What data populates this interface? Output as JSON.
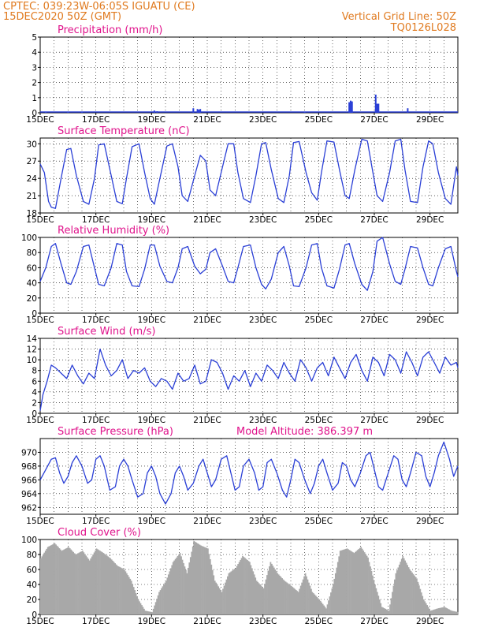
{
  "header": {
    "line1": "CPTEC:   039:23W-06:05S   IGUATU (CE)",
    "line2": "15DEC2020 50Z (GMT)",
    "grid_note": "Vertical Grid Line: 50Z",
    "code": "TQ0126L028"
  },
  "colors": {
    "header": "#e07a1f",
    "title": "#e0148c",
    "line": "#2a3fd6",
    "cloud": "#a8a8a8",
    "grid": "#000000"
  },
  "x_labels": [
    "15DEC",
    "17DEC",
    "19DEC",
    "21DEC",
    "23DEC",
    "25DEC",
    "27DEC",
    "29DEC"
  ],
  "chart_data": [
    {
      "type": "bar",
      "title": "Precipitation (mm/h)",
      "ylim": [
        0,
        5
      ],
      "yticks": [
        0,
        1,
        2,
        3,
        4,
        5
      ],
      "x_range": [
        0,
        15
      ],
      "color": "#2a3fd6",
      "x": [
        0.2,
        1.0,
        1.5,
        4.1,
        4.2,
        5.5,
        5.65,
        5.7,
        5.75,
        9.5,
        11.1,
        11.15,
        11.2,
        12.05,
        12.1,
        12.15,
        13.2,
        14.0
      ],
      "values": [
        0.05,
        0.05,
        0.05,
        0.15,
        0.1,
        0.3,
        0.25,
        0.2,
        0.25,
        0.05,
        0.7,
        0.8,
        0.75,
        1.2,
        0.6,
        0.6,
        0.3,
        0.05
      ]
    },
    {
      "type": "line",
      "title": "Surface Temperature (nC)",
      "ylim": [
        18,
        31
      ],
      "yticks": [
        18,
        21,
        24,
        27,
        30
      ],
      "x_range": [
        0,
        15
      ],
      "color": "#2a3fd6",
      "x": [
        0.0,
        0.15,
        0.3,
        0.4,
        0.55,
        0.75,
        0.95,
        1.1,
        1.3,
        1.55,
        1.75,
        1.95,
        2.1,
        2.3,
        2.55,
        2.75,
        2.95,
        3.1,
        3.3,
        3.55,
        3.75,
        3.95,
        4.1,
        4.3,
        4.55,
        4.75,
        4.95,
        5.1,
        5.3,
        5.55,
        5.75,
        5.95,
        6.1,
        6.3,
        6.55,
        6.75,
        6.95,
        7.1,
        7.3,
        7.55,
        7.75,
        7.95,
        8.1,
        8.3,
        8.55,
        8.75,
        8.95,
        9.1,
        9.3,
        9.55,
        9.75,
        9.95,
        10.1,
        10.3,
        10.55,
        10.75,
        10.95,
        11.1,
        11.3,
        11.55,
        11.75,
        11.95,
        12.1,
        12.3,
        12.55,
        12.75,
        12.95,
        13.1,
        13.3,
        13.55,
        13.75,
        13.95,
        14.1,
        14.3,
        14.55,
        14.75,
        14.95,
        15.0
      ],
      "values": [
        26.5,
        25.0,
        20.0,
        19.0,
        18.8,
        24.0,
        29.0,
        29.2,
        24.5,
        20.0,
        19.5,
        24.0,
        29.8,
        30.0,
        24.5,
        20.0,
        19.6,
        24.0,
        29.5,
        30.0,
        25.0,
        20.5,
        19.5,
        24.0,
        29.6,
        30.0,
        26.0,
        21.0,
        20.0,
        24.5,
        28.0,
        27.0,
        22.0,
        21.0,
        26.0,
        30.0,
        30.0,
        25.0,
        20.5,
        19.8,
        24.5,
        30.0,
        30.2,
        25.5,
        20.5,
        19.8,
        24.5,
        30.2,
        30.4,
        25.0,
        21.5,
        20.2,
        25.0,
        30.5,
        30.3,
        25.5,
        21.0,
        20.5,
        25.5,
        30.8,
        30.5,
        25.0,
        21.0,
        20.0,
        25.0,
        30.5,
        30.8,
        25.5,
        20.0,
        19.8,
        26.0,
        30.5,
        30.0,
        25.0,
        20.5,
        19.5,
        26.0,
        24.5
      ]
    },
    {
      "type": "line",
      "title": "Relative Humidity (%)",
      "ylim": [
        0,
        100
      ],
      "yticks": [
        0,
        20,
        40,
        60,
        80,
        100
      ],
      "x_range": [
        0,
        15
      ],
      "color": "#2a3fd6",
      "x": [
        0.0,
        0.2,
        0.4,
        0.55,
        0.75,
        0.95,
        1.1,
        1.3,
        1.55,
        1.75,
        1.95,
        2.1,
        2.3,
        2.55,
        2.75,
        2.95,
        3.1,
        3.3,
        3.55,
        3.75,
        3.95,
        4.1,
        4.3,
        4.55,
        4.75,
        4.95,
        5.1,
        5.3,
        5.55,
        5.75,
        5.95,
        6.1,
        6.3,
        6.55,
        6.75,
        6.95,
        7.1,
        7.3,
        7.55,
        7.75,
        7.95,
        8.1,
        8.3,
        8.55,
        8.75,
        8.95,
        9.1,
        9.3,
        9.55,
        9.75,
        9.95,
        10.1,
        10.3,
        10.55,
        10.75,
        10.95,
        11.1,
        11.3,
        11.55,
        11.75,
        11.95,
        12.1,
        12.3,
        12.55,
        12.75,
        12.95,
        13.1,
        13.3,
        13.55,
        13.75,
        13.95,
        14.1,
        14.3,
        14.55,
        14.75,
        14.95,
        15.0
      ],
      "values": [
        42,
        60,
        88,
        92,
        65,
        40,
        38,
        55,
        88,
        90,
        60,
        38,
        36,
        60,
        92,
        90,
        55,
        36,
        35,
        58,
        90,
        90,
        62,
        42,
        40,
        60,
        85,
        88,
        62,
        52,
        58,
        80,
        85,
        62,
        42,
        40,
        60,
        88,
        90,
        60,
        38,
        32,
        45,
        80,
        88,
        62,
        36,
        35,
        60,
        90,
        92,
        60,
        36,
        33,
        58,
        90,
        92,
        65,
        38,
        30,
        55,
        95,
        100,
        65,
        42,
        38,
        58,
        88,
        86,
        60,
        38,
        36,
        60,
        85,
        88,
        55,
        48
      ]
    },
    {
      "type": "line",
      "title": "Surface Wind (m/s)",
      "ylim": [
        0,
        14
      ],
      "yticks": [
        0,
        2,
        4,
        6,
        8,
        10,
        12,
        14
      ],
      "x_range": [
        0,
        15
      ],
      "color": "#2a3fd6",
      "x": [
        0.0,
        0.1,
        0.25,
        0.4,
        0.55,
        0.75,
        0.95,
        1.15,
        1.35,
        1.55,
        1.75,
        1.95,
        2.15,
        2.35,
        2.55,
        2.75,
        2.95,
        3.15,
        3.35,
        3.55,
        3.75,
        3.95,
        4.15,
        4.35,
        4.55,
        4.75,
        4.95,
        5.15,
        5.35,
        5.55,
        5.75,
        5.95,
        6.15,
        6.35,
        6.55,
        6.75,
        6.95,
        7.15,
        7.35,
        7.55,
        7.75,
        7.95,
        8.15,
        8.35,
        8.55,
        8.75,
        8.95,
        9.15,
        9.35,
        9.55,
        9.75,
        9.95,
        10.15,
        10.35,
        10.55,
        10.75,
        10.95,
        11.15,
        11.35,
        11.55,
        11.75,
        11.95,
        12.15,
        12.35,
        12.55,
        12.75,
        12.95,
        13.15,
        13.35,
        13.55,
        13.75,
        13.95,
        14.15,
        14.35,
        14.55,
        14.75,
        14.95,
        15.0
      ],
      "values": [
        0.5,
        3.5,
        6.0,
        9.0,
        8.5,
        7.5,
        6.5,
        9.0,
        7.0,
        5.5,
        7.5,
        6.5,
        12.0,
        9.0,
        7.0,
        8.0,
        10.0,
        6.5,
        8.0,
        7.5,
        8.5,
        6.0,
        5.0,
        6.5,
        6.0,
        4.5,
        7.5,
        6.0,
        6.5,
        9.0,
        5.5,
        6.0,
        10.0,
        9.5,
        7.5,
        4.5,
        7.0,
        6.0,
        8.0,
        5.0,
        7.5,
        6.0,
        9.0,
        8.0,
        6.5,
        9.5,
        7.5,
        6.0,
        10.0,
        8.5,
        6.0,
        8.5,
        9.5,
        7.0,
        10.5,
        8.5,
        6.5,
        9.5,
        11.0,
        8.0,
        6.0,
        10.5,
        9.5,
        7.0,
        11.0,
        10.0,
        7.5,
        11.5,
        9.5,
        7.0,
        10.5,
        11.5,
        9.5,
        7.5,
        10.5,
        9.0,
        9.5,
        8.5
      ]
    },
    {
      "type": "line",
      "title": "Surface Pressure (hPa)",
      "subtitle": "Model Altitude: 386.397 m",
      "ylim": [
        961,
        972
      ],
      "yticks": [
        962,
        964,
        966,
        968,
        970
      ],
      "x_range": [
        0,
        15
      ],
      "color": "#2a3fd6",
      "x": [
        0.0,
        0.2,
        0.4,
        0.55,
        0.7,
        0.85,
        1.0,
        1.15,
        1.3,
        1.5,
        1.7,
        1.85,
        2.0,
        2.15,
        2.3,
        2.5,
        2.7,
        2.85,
        3.0,
        3.15,
        3.3,
        3.5,
        3.7,
        3.85,
        4.0,
        4.15,
        4.3,
        4.5,
        4.7,
        4.85,
        5.0,
        5.15,
        5.3,
        5.5,
        5.7,
        5.85,
        6.0,
        6.15,
        6.3,
        6.5,
        6.7,
        6.85,
        7.0,
        7.15,
        7.3,
        7.5,
        7.7,
        7.85,
        8.0,
        8.15,
        8.3,
        8.5,
        8.7,
        8.85,
        9.0,
        9.15,
        9.3,
        9.5,
        9.7,
        9.85,
        10.0,
        10.15,
        10.3,
        10.5,
        10.7,
        10.85,
        11.0,
        11.15,
        11.3,
        11.5,
        11.7,
        11.85,
        12.0,
        12.15,
        12.3,
        12.5,
        12.7,
        12.85,
        13.0,
        13.15,
        13.3,
        13.5,
        13.7,
        13.85,
        14.0,
        14.15,
        14.3,
        14.5,
        14.7,
        14.85,
        15.0
      ],
      "values": [
        966,
        967.5,
        969,
        969.2,
        967,
        965.5,
        966.5,
        968.5,
        969.5,
        968,
        965.5,
        966,
        969,
        969.5,
        968,
        964.5,
        965,
        968,
        969,
        968,
        966,
        963.5,
        964,
        967,
        968,
        966.5,
        964,
        962.5,
        964,
        967,
        968,
        966.5,
        964.5,
        965.5,
        968,
        969,
        967,
        965,
        966,
        969,
        969.5,
        967,
        964.5,
        965,
        968,
        969,
        967,
        964.5,
        965,
        968.5,
        969,
        967,
        964.5,
        963.5,
        966,
        969,
        968.5,
        966,
        964,
        965.5,
        968,
        969,
        967,
        964.5,
        965.5,
        968.5,
        968,
        966,
        965,
        967,
        969.5,
        970,
        967.5,
        965,
        964.5,
        967,
        969.5,
        969,
        966,
        965,
        967,
        970,
        969.5,
        966.5,
        965,
        967,
        969.5,
        971.5,
        969,
        966.5,
        968
      ]
    },
    {
      "type": "area",
      "title": "Cloud Cover (%)",
      "ylim": [
        0,
        100
      ],
      "yticks": [
        0,
        20,
        40,
        60,
        80,
        100
      ],
      "x_range": [
        0,
        15
      ],
      "color": "#a8a8a8",
      "x": [
        0.0,
        0.25,
        0.5,
        0.75,
        1.0,
        1.25,
        1.5,
        1.75,
        2.0,
        2.25,
        2.5,
        2.75,
        3.0,
        3.25,
        3.5,
        3.75,
        4.0,
        4.25,
        4.5,
        4.75,
        5.0,
        5.25,
        5.5,
        5.75,
        6.0,
        6.25,
        6.5,
        6.75,
        7.0,
        7.25,
        7.5,
        7.75,
        8.0,
        8.25,
        8.5,
        8.75,
        9.0,
        9.25,
        9.5,
        9.75,
        10.0,
        10.25,
        10.5,
        10.75,
        11.0,
        11.25,
        11.5,
        11.75,
        12.0,
        12.25,
        12.5,
        12.75,
        13.0,
        13.25,
        13.5,
        13.75,
        14.0,
        14.25,
        14.5,
        14.75,
        15.0
      ],
      "values": [
        75,
        90,
        95,
        85,
        90,
        80,
        85,
        72,
        88,
        82,
        75,
        65,
        60,
        45,
        20,
        5,
        3,
        30,
        45,
        70,
        82,
        55,
        98,
        92,
        88,
        45,
        30,
        55,
        62,
        78,
        70,
        45,
        35,
        70,
        55,
        45,
        38,
        30,
        55,
        30,
        20,
        8,
        40,
        85,
        88,
        82,
        90,
        76,
        40,
        10,
        5,
        55,
        78,
        60,
        48,
        20,
        5,
        8,
        10,
        5,
        3
      ]
    }
  ]
}
